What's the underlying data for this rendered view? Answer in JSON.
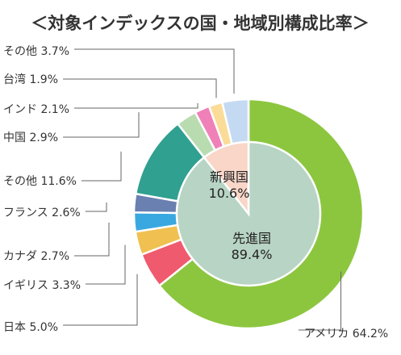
{
  "chart_data": {
    "type": "pie",
    "title": "＜対象インデックスの国・地域別構成比率＞",
    "inner": [
      {
        "name": "先進国",
        "value": 89.4,
        "label": "先進国",
        "pct": "89.4%",
        "color": "#b8d4c4"
      },
      {
        "name": "新興国",
        "value": 10.6,
        "label": "新興国",
        "pct": "10.6%",
        "color": "#f9d6c8"
      }
    ],
    "outer": [
      {
        "name": "アメリカ",
        "value": 64.2,
        "label": "アメリカ 64.2%",
        "color": "#8cc63f"
      },
      {
        "name": "日本",
        "value": 5.0,
        "label": "日本 5.0%",
        "color": "#f05a6e"
      },
      {
        "name": "イギリス",
        "value": 3.3,
        "label": "イギリス 3.3%",
        "color": "#f0c050"
      },
      {
        "name": "カナダ",
        "value": 2.7,
        "label": "カナダ 2.7%",
        "color": "#3aa8e0"
      },
      {
        "name": "フランス",
        "value": 2.6,
        "label": "フランス 2.6%",
        "color": "#6a80b0"
      },
      {
        "name": "その他(先進国)",
        "value": 11.6,
        "label": "その他 11.6%",
        "color": "#30a090"
      },
      {
        "name": "中国",
        "value": 2.9,
        "label": "中国 2.9%",
        "color": "#b8dcb0"
      },
      {
        "name": "インド",
        "value": 2.1,
        "label": "インド 2.1%",
        "color": "#f080b8"
      },
      {
        "name": "台湾",
        "value": 1.9,
        "label": "台湾 1.9%",
        "color": "#fadc98"
      },
      {
        "name": "その他(新興国)",
        "value": 3.7,
        "label": "その他 3.7%",
        "color": "#c4daf2"
      }
    ]
  }
}
